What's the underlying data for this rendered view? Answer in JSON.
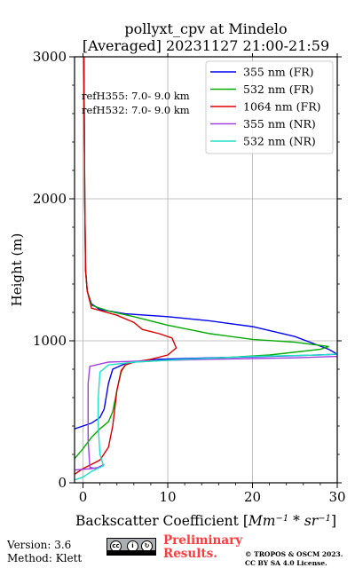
{
  "chart_data": {
    "type": "line",
    "title": [
      "pollyxt_cpv at Mindelo",
      "[Averaged] 20231127 21:00-21:59"
    ],
    "xlabel": "Backscatter Coefficient [Mm⁻¹ * sr⁻¹]",
    "ylabel": "Height (m)",
    "xlim": [
      -1,
      30
    ],
    "ylim": [
      0,
      3000
    ],
    "xticks": [
      "0",
      "10",
      "20",
      "30"
    ],
    "yticks": [
      "0",
      "1000",
      "2000",
      "3000"
    ],
    "grid": true,
    "legend_position": "top-right",
    "annotations": [
      "refH355:  7.0- 9.0 km",
      "refH532:  7.0- 9.0 km"
    ],
    "series": [
      {
        "name": "355 nm (FR)",
        "color": "#0000ee",
        "points": [
          [
            -1,
            380
          ],
          [
            1,
            420
          ],
          [
            2,
            460
          ],
          [
            2.5,
            520
          ],
          [
            3,
            700
          ],
          [
            3.5,
            800
          ],
          [
            5,
            840
          ],
          [
            7,
            860
          ],
          [
            9,
            870
          ],
          [
            15,
            880
          ],
          [
            25,
            895
          ],
          [
            30,
            905
          ],
          [
            29,
            940
          ],
          [
            25,
            1030
          ],
          [
            20,
            1100
          ],
          [
            15,
            1140
          ],
          [
            10,
            1170
          ],
          [
            5,
            1190
          ],
          [
            2,
            1220
          ],
          [
            1,
            1260
          ],
          [
            0.5,
            1350
          ],
          [
            0.3,
            1500
          ],
          [
            0.2,
            2000
          ],
          [
            0.1,
            3000
          ]
        ]
      },
      {
        "name": "532 nm (FR)",
        "color": "#00aa00",
        "points": [
          [
            -1,
            170
          ],
          [
            0,
            240
          ],
          [
            1,
            320
          ],
          [
            2,
            380
          ],
          [
            3,
            430
          ],
          [
            3.5,
            500
          ],
          [
            4,
            650
          ],
          [
            4.5,
            780
          ],
          [
            5,
            830
          ],
          [
            6,
            850
          ],
          [
            9,
            860
          ],
          [
            15,
            875
          ],
          [
            22,
            900
          ],
          [
            28,
            940
          ],
          [
            29,
            960
          ],
          [
            25,
            990
          ],
          [
            20,
            1010
          ],
          [
            15,
            1050
          ],
          [
            10,
            1110
          ],
          [
            6,
            1170
          ],
          [
            3,
            1210
          ],
          [
            1,
            1250
          ],
          [
            0.5,
            1350
          ],
          [
            0.3,
            1500
          ],
          [
            0.2,
            2000
          ],
          [
            0.1,
            3000
          ]
        ]
      },
      {
        "name": "1064 nm (FR)",
        "color": "#dd0000",
        "points": [
          [
            -1,
            60
          ],
          [
            0,
            100
          ],
          [
            1,
            130
          ],
          [
            2,
            160
          ],
          [
            3,
            250
          ],
          [
            3.5,
            400
          ],
          [
            4,
            650
          ],
          [
            4.5,
            790
          ],
          [
            5,
            830
          ],
          [
            6,
            850
          ],
          [
            8,
            870
          ],
          [
            10,
            900
          ],
          [
            11,
            950
          ],
          [
            10.5,
            1020
          ],
          [
            9,
            1050
          ],
          [
            7,
            1080
          ],
          [
            6,
            1130
          ],
          [
            4,
            1180
          ],
          [
            1,
            1230
          ],
          [
            0.5,
            1350
          ],
          [
            0.3,
            1500
          ],
          [
            0.2,
            2000
          ],
          [
            0.1,
            3000
          ]
        ]
      },
      {
        "name": "355 nm (NR)",
        "color": "#a040e0",
        "points": [
          [
            -1,
            90
          ],
          [
            1,
            100
          ],
          [
            2,
            110
          ],
          [
            2.5,
            130
          ],
          [
            1.5,
            100
          ],
          [
            0.8,
            110
          ],
          [
            0.6,
            300
          ],
          [
            0.6,
            500
          ],
          [
            0.6,
            700
          ],
          [
            0.8,
            820
          ],
          [
            3,
            850
          ],
          [
            8,
            860
          ],
          [
            15,
            870
          ],
          [
            25,
            880
          ],
          [
            30,
            890
          ],
          [
            31,
            900
          ]
        ]
      },
      {
        "name": "532 nm (NR)",
        "color": "#20e0c8",
        "points": [
          [
            -1,
            20
          ],
          [
            0,
            40
          ],
          [
            1,
            80
          ],
          [
            2.4,
            120
          ],
          [
            2,
            200
          ],
          [
            1.8,
            400
          ],
          [
            1.8,
            600
          ],
          [
            2,
            780
          ],
          [
            3,
            830
          ],
          [
            6,
            850
          ],
          [
            12,
            870
          ],
          [
            20,
            890
          ],
          [
            28,
            900
          ],
          [
            31,
            910
          ]
        ]
      }
    ]
  },
  "footer": {
    "version": "Version: 3.6",
    "method": "Method: Klett",
    "preliminary": [
      "Preliminary",
      "Results."
    ],
    "copyright": [
      "© TROPOS & OSCM 2023.",
      "CC BY SA 4.0 License."
    ]
  }
}
